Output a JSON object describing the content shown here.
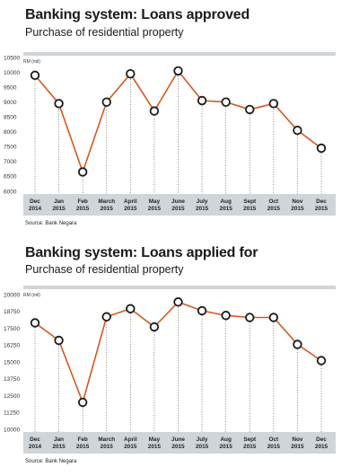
{
  "chart_data": [
    {
      "type": "line",
      "title": "Banking system: Loans approved",
      "subtitle": "Purchase of residential property",
      "unit_label": "RM (mil)",
      "source": "Source: Bank Negara",
      "categories": [
        [
          "Dec",
          "2014"
        ],
        [
          "Jan",
          "2015"
        ],
        [
          "Feb",
          "2015"
        ],
        [
          "March",
          "2015"
        ],
        [
          "April",
          "2015"
        ],
        [
          "May",
          "2015"
        ],
        [
          "June",
          "2015"
        ],
        [
          "July",
          "2015"
        ],
        [
          "Aug",
          "2015"
        ],
        [
          "Sept",
          "2015"
        ],
        [
          "Oct",
          "2015"
        ],
        [
          "Nov",
          "2015"
        ],
        [
          "Dec",
          "2015"
        ]
      ],
      "values": [
        9900,
        8950,
        6650,
        9000,
        9950,
        8700,
        10050,
        9050,
        9000,
        8750,
        8950,
        8050,
        7450
      ],
      "ylim": [
        6000,
        10500
      ],
      "yticks": [
        "6000",
        "6500",
        "7000",
        "7500",
        "8000",
        "8500",
        "9000",
        "9500",
        "10000",
        "10500"
      ],
      "colors": {
        "line": "#d4581e",
        "marker_fill": "#ffffff",
        "marker_stroke": "#1a1a1a",
        "band": "#cfd5d9"
      }
    },
    {
      "type": "line",
      "title": "Banking system: Loans applied for",
      "subtitle": "Purchase of residential property",
      "unit_label": "RM (mil)",
      "source": "Source: Bank Negara",
      "categories": [
        [
          "Dec",
          "2014"
        ],
        [
          "Jan",
          "2015"
        ],
        [
          "Feb",
          "2015"
        ],
        [
          "March",
          "2015"
        ],
        [
          "April",
          "2015"
        ],
        [
          "May",
          "2015"
        ],
        [
          "June",
          "2015"
        ],
        [
          "July",
          "2015"
        ],
        [
          "Aug",
          "2015"
        ],
        [
          "Sept",
          "2015"
        ],
        [
          "Oct",
          "2015"
        ],
        [
          "Nov",
          "2015"
        ],
        [
          "Dec",
          "2015"
        ]
      ],
      "values": [
        17900,
        16600,
        12000,
        18350,
        18950,
        17600,
        19450,
        18800,
        18450,
        18300,
        18300,
        16300,
        15100
      ],
      "ylim": [
        10000,
        20000
      ],
      "yticks": [
        "10000",
        "11250",
        "12500",
        "13750",
        "15000",
        "16250",
        "17500",
        "18750",
        "20000"
      ],
      "colors": {
        "line": "#d4581e",
        "marker_fill": "#ffffff",
        "marker_stroke": "#1a1a1a",
        "band": "#cfd5d9"
      }
    }
  ]
}
